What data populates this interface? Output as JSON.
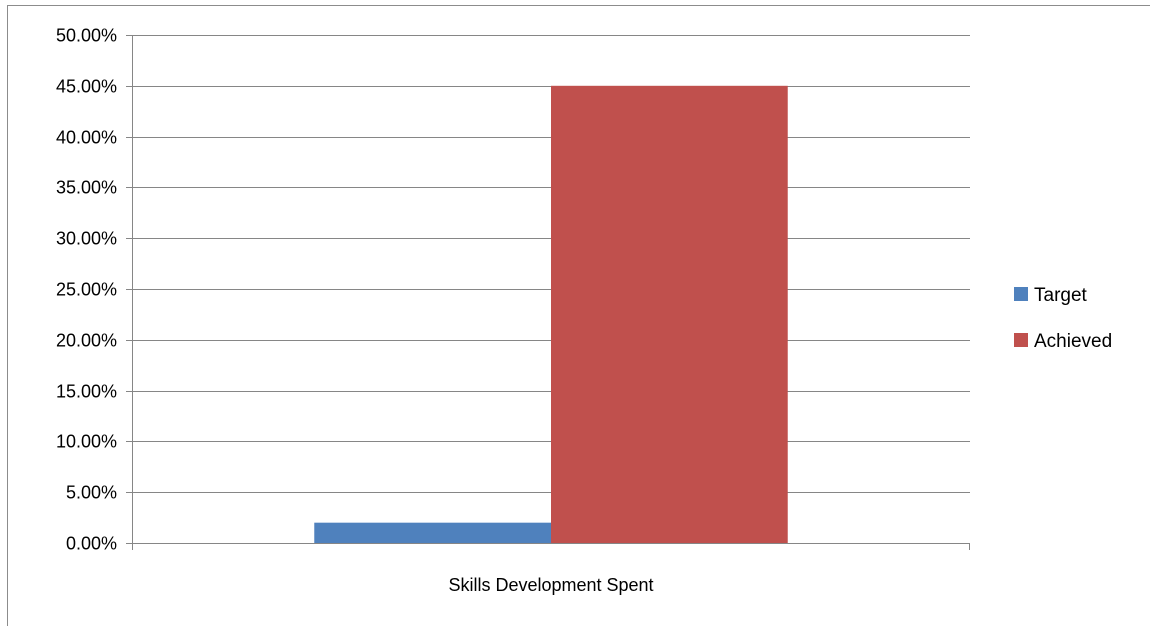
{
  "chart_data": {
    "type": "bar",
    "title": "",
    "xlabel": "",
    "ylabel": "",
    "categories": [
      "Skills Development Spent"
    ],
    "series": [
      {
        "name": "Target",
        "values": [
          0.02
        ],
        "color": "#4f81bd"
      },
      {
        "name": "Achieved",
        "values": [
          0.45
        ],
        "color": "#c0504d"
      }
    ],
    "ylim": [
      0,
      0.5
    ],
    "y_tick_step": 0.05,
    "y_tick_format": "percent-2dp",
    "y_ticks": [
      "0.00%",
      "5.00%",
      "10.00%",
      "15.00%",
      "20.00%",
      "25.00%",
      "30.00%",
      "35.00%",
      "40.00%",
      "45.00%",
      "50.00%"
    ],
    "grid": true,
    "legend_position": "right"
  }
}
